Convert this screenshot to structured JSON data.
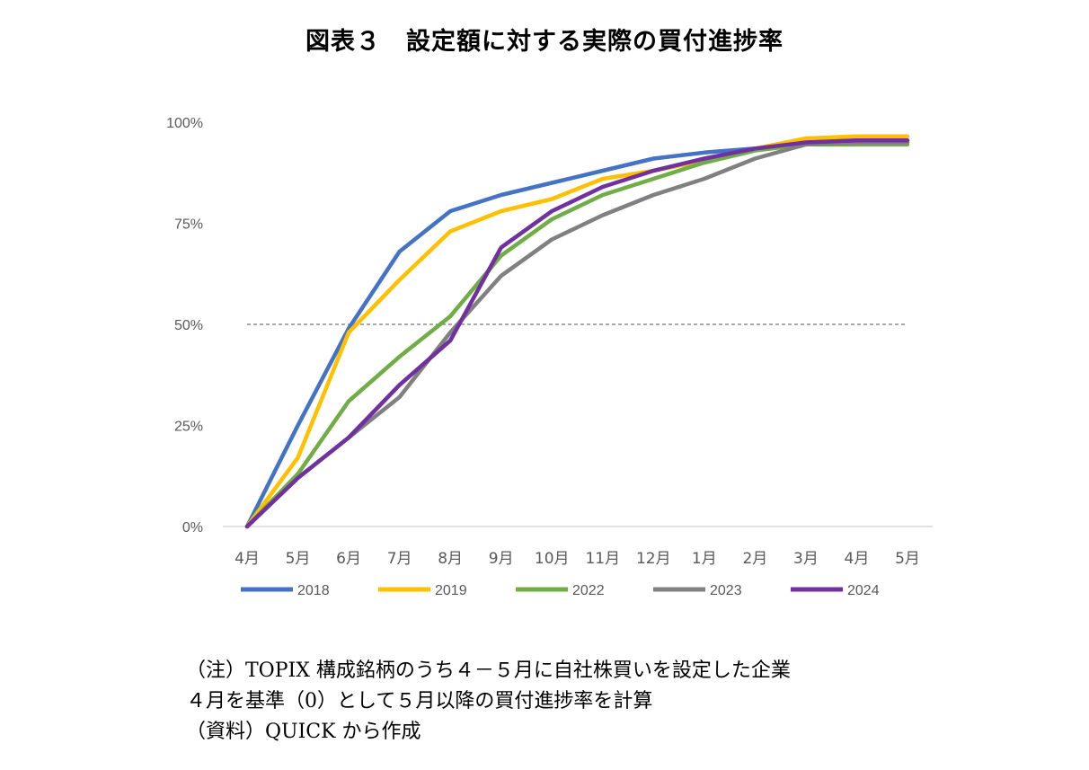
{
  "title": "図表３　設定額に対する実際の買付進捗率",
  "chart_data": {
    "type": "line",
    "categories": [
      "4月",
      "5月",
      "6月",
      "7月",
      "8月",
      "9月",
      "10月",
      "11月",
      "12月",
      "1月",
      "2月",
      "3月",
      "4月",
      "5月"
    ],
    "y_ticks": [
      "0%",
      "25%",
      "50%",
      "75%",
      "100%"
    ],
    "ylim": [
      0,
      100
    ],
    "y_unit": "%",
    "reference_line": {
      "value": 50,
      "style": "dashed",
      "color": "#555555"
    },
    "legend_position": "bottom",
    "grid": false,
    "series": [
      {
        "name": "2018",
        "color": "#4472C4",
        "values": [
          0,
          25,
          49,
          68,
          78,
          82,
          85,
          88,
          91,
          92.5,
          93.5,
          95,
          95.5,
          95.5
        ]
      },
      {
        "name": "2019",
        "color": "#FFC000",
        "values": [
          0,
          17,
          48,
          61,
          73,
          78,
          81,
          86,
          88,
          90.5,
          93.5,
          96,
          96.5,
          96.5
        ]
      },
      {
        "name": "2022",
        "color": "#70AD47",
        "values": [
          0,
          13,
          31,
          42,
          52,
          67,
          76,
          82,
          86,
          90,
          93,
          94.5,
          94.5,
          94.5
        ]
      },
      {
        "name": "2023",
        "color": "#808080",
        "values": [
          0,
          12,
          22,
          32,
          48,
          62,
          71,
          77,
          82,
          86,
          91,
          94.5,
          95,
          95
        ]
      },
      {
        "name": "2024",
        "color": "#7030A0",
        "values": [
          0,
          12,
          22,
          35,
          46,
          69,
          78,
          84,
          88,
          91,
          93.5,
          95,
          95.5,
          95.5
        ]
      }
    ]
  },
  "notes": [
    "（注）TOPIX 構成銘柄のうち４－５月に自社株買いを設定した企業",
    "４月を基準（0）として５月以降の買付進捗率を計算",
    "（資料）QUICK から作成"
  ]
}
